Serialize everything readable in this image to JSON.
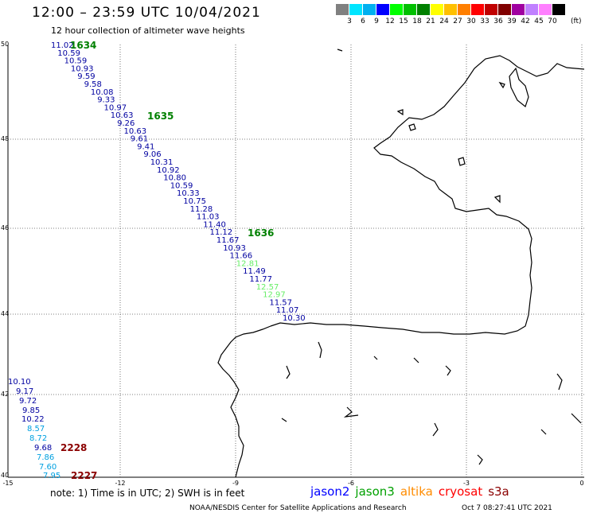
{
  "header": {
    "title": "12:00 – 23:59 UTC 10/04/2021",
    "subtitle": "12 hour collection of altimeter wave heights"
  },
  "legend": {
    "colors": [
      "#808080",
      "#00e5ff",
      "#00b0f0",
      "#0000ff",
      "#00ff00",
      "#00c000",
      "#008000",
      "#ffff00",
      "#ffc000",
      "#ff7f00",
      "#ff0000",
      "#c00000",
      "#800000",
      "#a000a0",
      "#c080ff",
      "#ff80ff",
      "#000000"
    ],
    "labels": [
      "3",
      "6",
      "9",
      "12",
      "15",
      "18",
      "21",
      "24",
      "27",
      "30",
      "33",
      "36",
      "39",
      "42",
      "45",
      "70"
    ],
    "unit": "(ft)"
  },
  "axes": {
    "lat_labels": [
      "50",
      "48",
      "46",
      "44",
      "42",
      "40"
    ],
    "lon_labels": [
      "-15",
      "-12",
      "-9",
      "-6",
      "-3",
      "0"
    ]
  },
  "track_main": {
    "color": "#0000a0",
    "values": [
      "11.02",
      "10.59",
      "10.59",
      "10.93",
      "9.59",
      "9.58",
      "10.08",
      "9.33",
      "10.97",
      "10.63",
      "9.26",
      "10.63",
      "9.61",
      "9.41",
      "9.06",
      "10.31",
      "10.92",
      "10.80",
      "10.59",
      "10.33",
      "10.75",
      "11.28",
      "11.03",
      "11.40",
      "11.12",
      "11.67",
      "10.93",
      "11.66",
      "12.81",
      "11.49",
      "11.77",
      "12.57",
      "12.97",
      "11.57",
      "11.07",
      "10.30"
    ],
    "value_colors": {
      "12.81": "#66ee66",
      "12.57": "#66ee66",
      "12.97": "#66ee66"
    }
  },
  "track_sw": {
    "values": [
      "10.10",
      "9.17",
      "9.72",
      "9.85",
      "10.22",
      "8.57",
      "8.72",
      "9.68",
      "7.86",
      "7.60",
      "7.95"
    ],
    "colors": [
      "#0000a0",
      "#0000a0",
      "#0000a0",
      "#0000a0",
      "#0000a0",
      "#00a0e0",
      "#00a0e0",
      "#0000a0",
      "#00a0e0",
      "#00a0e0",
      "#00a0e0"
    ]
  },
  "pass_labels": [
    {
      "text": "1634",
      "color": "#008000"
    },
    {
      "text": "1635",
      "color": "#008000"
    },
    {
      "text": "1636",
      "color": "#008000"
    },
    {
      "text": "2228",
      "color": "#8b0000"
    },
    {
      "text": "2227",
      "color": "#8b0000"
    }
  ],
  "footer": {
    "note": "note: 1) Time is in UTC; 2) SWH is in feet",
    "satellites": [
      {
        "name": "jason2",
        "color": "#0000ff"
      },
      {
        "name": "jason3",
        "color": "#00a000"
      },
      {
        "name": "altika",
        "color": "#ff8c00"
      },
      {
        "name": "cryosat",
        "color": "#ff0000"
      },
      {
        "name": "s3a",
        "color": "#8b0000"
      }
    ],
    "credit": "NOAA/NESDIS Center for Satellite Applications and Research",
    "timestamp": "Oct  7 08:27:41 UTC 2021"
  }
}
